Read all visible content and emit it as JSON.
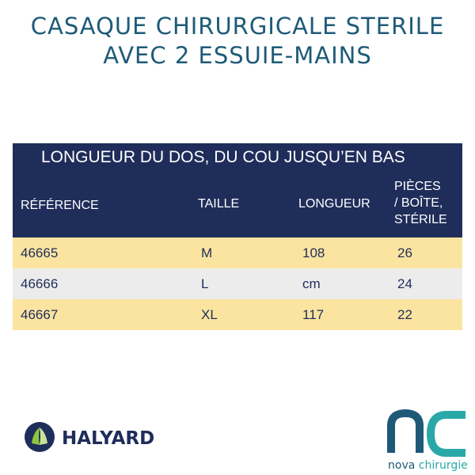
{
  "header": {
    "title_lines": [
      "CASAQUE CHIRURGICALE STERILE",
      "AVEC 2 ESSUIE-MAINS"
    ]
  },
  "table": {
    "caption": "LONGUEUR DU DOS, DU COU JUSQU’EN BAS",
    "columns": [
      "RÉFÉRENCE",
      "TAILLE",
      "LONGUEUR",
      [
        "PIÈCES",
        "/ BOÎTE,",
        "STÉRILE"
      ]
    ],
    "rows": [
      [
        "46665",
        "M",
        "108",
        "26"
      ],
      [
        "46666",
        "L",
        "cm",
        "24"
      ],
      [
        "46667",
        "XL",
        "117",
        "22"
      ]
    ]
  },
  "logos": {
    "halyard": "HALYARD",
    "nova": [
      "nova",
      "chirurgie"
    ]
  }
}
